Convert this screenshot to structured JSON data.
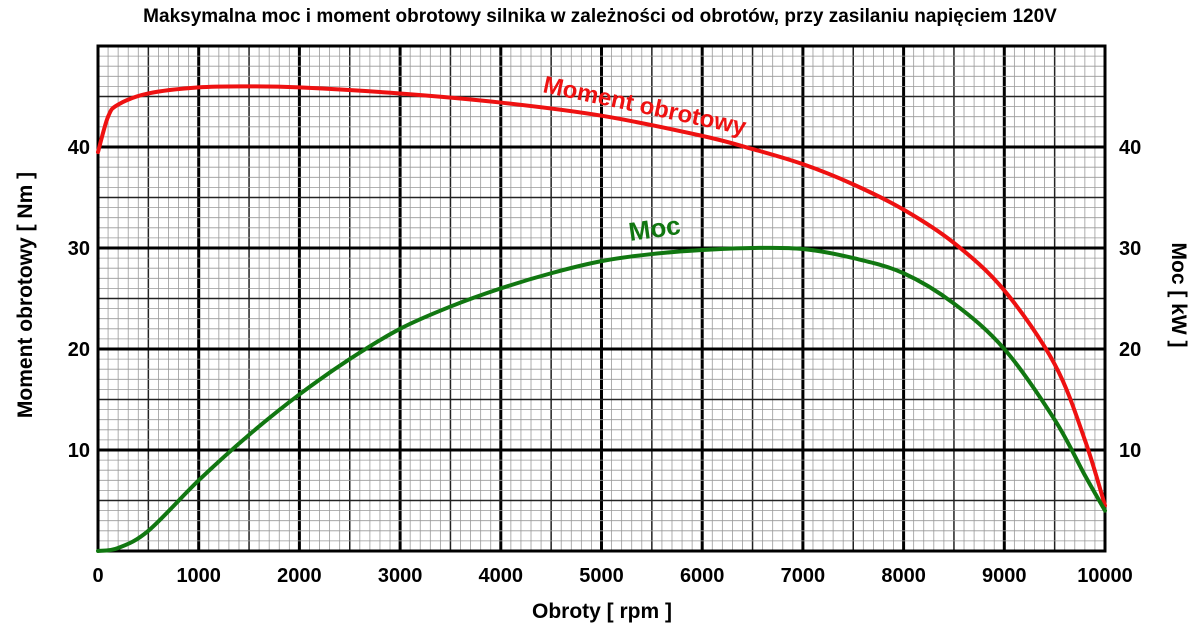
{
  "chart_data": {
    "type": "line",
    "title": "Maksymalna moc i moment obrotowy silnika w zależności od obrotów, przy zasilaniu napięciem 120V",
    "xlabel": "Obroty [ rpm ]",
    "ylabel_left": "Moment obrotowy [ Nm ]",
    "ylabel_right": "Moc [ kW ]",
    "xlim": [
      0,
      10000
    ],
    "ylim": [
      0,
      50
    ],
    "xticks": [
      "0",
      "1000",
      "2000",
      "3000",
      "4000",
      "5000",
      "6000",
      "7000",
      "8000",
      "9000",
      "10000"
    ],
    "yticks": [
      "10",
      "20",
      "30",
      "40"
    ],
    "grid": true,
    "series": [
      {
        "name": "Moment obrotowy",
        "axis": "left",
        "color": "#ee1111",
        "x": [
          0,
          100,
          200,
          500,
          1000,
          1500,
          2000,
          3000,
          4000,
          5000,
          6000,
          6500,
          7000,
          7500,
          8000,
          8500,
          9000,
          9500,
          9800,
          10000
        ],
        "y": [
          39.5,
          43,
          44.2,
          45.3,
          45.9,
          46,
          45.9,
          45.3,
          44.4,
          43.1,
          41.1,
          39.8,
          38.3,
          36.3,
          33.8,
          30.5,
          25.8,
          18.5,
          11,
          4.5
        ]
      },
      {
        "name": "Moc",
        "axis": "right",
        "color": "#117711",
        "x": [
          0,
          200,
          500,
          1000,
          1500,
          2000,
          2500,
          3000,
          3500,
          4000,
          4500,
          5000,
          5500,
          6000,
          6500,
          7000,
          7500,
          8000,
          8500,
          9000,
          9500,
          9800,
          10000
        ],
        "y": [
          0,
          0.3,
          2,
          7,
          11.5,
          15.5,
          19,
          22,
          24.2,
          26,
          27.5,
          28.7,
          29.4,
          29.8,
          30,
          29.9,
          29,
          27.5,
          24.5,
          20,
          13,
          7.5,
          4
        ]
      }
    ]
  }
}
